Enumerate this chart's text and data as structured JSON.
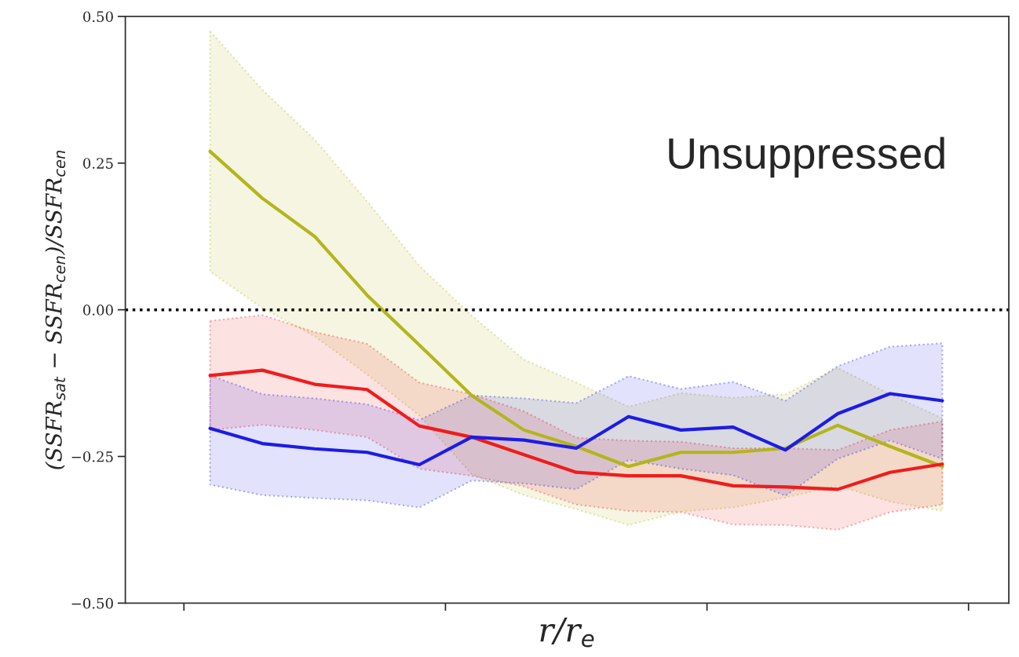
{
  "chart_data": {
    "type": "line",
    "xlabel": "r/r$_{e}$",
    "ylabel": "(SSFR$_{sat}$ − SSFR$_{cen}$)/SSFR$_{cen}$",
    "categories": [
      null,
      null,
      null,
      null,
      null,
      null,
      null,
      null,
      null,
      null,
      null,
      null,
      null,
      null,
      null
    ],
    "series": [
      {
        "color": "#b3b51c",
        "values": [
          0.27,
          0.19,
          0.125,
          0.025,
          -0.06,
          -0.146,
          -0.205,
          -0.233,
          -0.267,
          -0.243,
          -0.243,
          -0.236,
          -0.197,
          -0.233,
          -0.267
        ],
        "upper": [
          0.475,
          0.375,
          0.29,
          0.185,
          0.075,
          -0.01,
          -0.085,
          -0.124,
          -0.165,
          -0.142,
          -0.15,
          -0.144,
          -0.099,
          -0.144,
          -0.185
        ],
        "lower": [
          0.065,
          0.003,
          -0.045,
          -0.11,
          -0.18,
          -0.28,
          -0.316,
          -0.34,
          -0.367,
          -0.344,
          -0.337,
          -0.32,
          -0.3,
          -0.327,
          -0.343
        ]
      },
      {
        "color": "#f01c1c",
        "values": [
          -0.112,
          -0.103,
          -0.127,
          -0.136,
          -0.198,
          -0.217,
          -0.247,
          -0.277,
          -0.283,
          -0.283,
          -0.3,
          -0.302,
          -0.306,
          -0.277,
          -0.263
        ],
        "upper": [
          -0.019,
          -0.009,
          -0.038,
          -0.058,
          -0.124,
          -0.144,
          -0.173,
          -0.218,
          -0.223,
          -0.225,
          -0.236,
          -0.236,
          -0.239,
          -0.205,
          -0.19
        ],
        "lower": [
          -0.205,
          -0.196,
          -0.205,
          -0.217,
          -0.271,
          -0.283,
          -0.301,
          -0.332,
          -0.343,
          -0.345,
          -0.366,
          -0.367,
          -0.375,
          -0.345,
          -0.332
        ]
      },
      {
        "color": "#1c1ce6",
        "values": [
          -0.202,
          -0.228,
          -0.237,
          -0.243,
          -0.264,
          -0.217,
          -0.222,
          -0.236,
          -0.182,
          -0.205,
          -0.2,
          -0.239,
          -0.177,
          -0.143,
          -0.155
        ],
        "upper": [
          -0.112,
          -0.144,
          -0.151,
          -0.161,
          -0.188,
          -0.146,
          -0.151,
          -0.159,
          -0.113,
          -0.135,
          -0.123,
          -0.155,
          -0.096,
          -0.063,
          -0.057
        ],
        "lower": [
          -0.298,
          -0.316,
          -0.321,
          -0.325,
          -0.337,
          -0.291,
          -0.296,
          -0.306,
          -0.256,
          -0.271,
          -0.282,
          -0.317,
          -0.254,
          -0.223,
          -0.254
        ]
      }
    ],
    "ylim": [
      -0.5,
      0.5
    ],
    "yticks": [
      {
        "value": -0.5,
        "label": "−0.50"
      },
      {
        "value": -0.25,
        "label": "−0.25"
      },
      {
        "value": 0,
        "label": "0.00"
      },
      {
        "value": 0.25,
        "label": "0.25"
      },
      {
        "value": 0.5,
        "label": "0.50"
      }
    ],
    "tick_labels": "y",
    "ref_lines": [
      {
        "axis": "y",
        "value": 0,
        "color": "#000000",
        "line_style": "dotted"
      }
    ],
    "annotations": [
      "Unsuppressed"
    ],
    "grid": false,
    "legend": false,
    "marker": "none",
    "line_style": "solid"
  }
}
